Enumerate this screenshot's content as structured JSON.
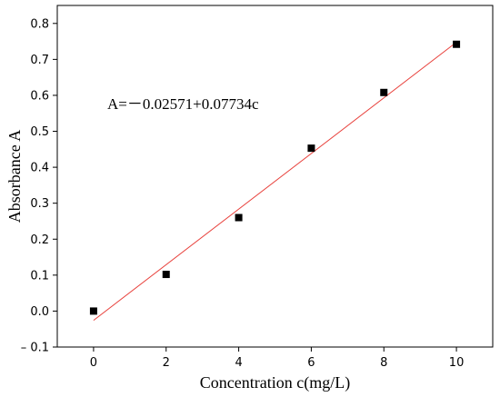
{
  "chart_data": {
    "type": "scatter",
    "xlabel": "Concentration c(mg/L)",
    "ylabel": "Absorbance A",
    "xlim": [
      -1,
      11
    ],
    "ylim": [
      -0.1,
      0.85
    ],
    "x_ticks": [
      0,
      2,
      4,
      6,
      8,
      10
    ],
    "y_ticks": [
      -0.1,
      0.0,
      0.1,
      0.2,
      0.3,
      0.4,
      0.5,
      0.6,
      0.7,
      0.8
    ],
    "x_tick_labels": [
      "0",
      "2",
      "4",
      "6",
      "8",
      "10"
    ],
    "y_tick_labels": [
      "– 0.1",
      "0.0",
      "0.1",
      "0.2",
      "0.3",
      "0.4",
      "0.5",
      "0.6",
      "0.7",
      "0.8"
    ],
    "grid": false,
    "points": [
      {
        "x": 0,
        "y": 0.0
      },
      {
        "x": 2,
        "y": 0.102
      },
      {
        "x": 4,
        "y": 0.26
      },
      {
        "x": 6,
        "y": 0.453
      },
      {
        "x": 8,
        "y": 0.608
      },
      {
        "x": 10,
        "y": 0.742
      }
    ],
    "fit_line": {
      "intercept": -0.02571,
      "slope": 0.07734,
      "x_range": [
        0,
        10
      ],
      "color": "#e8413c"
    },
    "annotation": "A=－0.02571+0.07734c",
    "marker_color": "#000000"
  }
}
